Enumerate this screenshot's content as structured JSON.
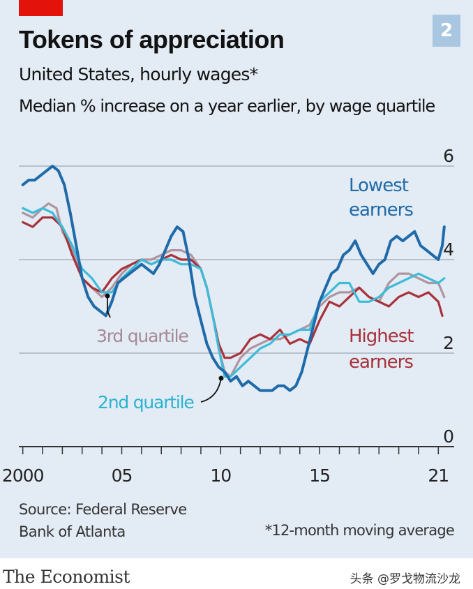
{
  "header": {
    "title": "Tokens of appreciation",
    "subtitle": "United States, hourly wages*",
    "subtitle2": "Median % increase on a year earlier, by wage quartile",
    "chart_number": "2"
  },
  "footer": {
    "source_line1": "Source: Federal Reserve",
    "source_line2": "Bank of Atlanta",
    "footnote": "*12-month moving average",
    "brand": "The Economist",
    "watermark": "头条 @罗戈物流沙龙"
  },
  "colors": {
    "lowest": "#1f6aa8",
    "second": "#3dbcd8",
    "third": "#b0949f",
    "highest": "#a8313a",
    "grid": "#9ba8b4",
    "axis": "#333333"
  },
  "chart_data": {
    "type": "line",
    "title": "Tokens of appreciation",
    "ylim": [
      0,
      6
    ],
    "xlim": [
      1999.8,
      2021.8
    ],
    "yticks": [
      0,
      2,
      4,
      6
    ],
    "xtick_labels": [
      {
        "x": 2000,
        "label": "2000"
      },
      {
        "x": 2005,
        "label": "05"
      },
      {
        "x": 2010,
        "label": "10"
      },
      {
        "x": 2015,
        "label": "15"
      },
      {
        "x": 2021,
        "label": "21"
      }
    ],
    "grid": true,
    "series": [
      {
        "name": "3rd quartile",
        "color_key": "third",
        "x": [
          2000,
          2000.5,
          2001,
          2001.3,
          2001.7,
          2002,
          2002.5,
          2003,
          2003.5,
          2004,
          2004.5,
          2005,
          2005.5,
          2006,
          2006.5,
          2007,
          2007.5,
          2008,
          2008.5,
          2009,
          2009.3,
          2009.6,
          2009.9,
          2010.2,
          2010.5,
          2011,
          2011.5,
          2012,
          2012.5,
          2013,
          2013.5,
          2014,
          2014.5,
          2015,
          2015.5,
          2016,
          2016.5,
          2017,
          2017.5,
          2018,
          2018.5,
          2019,
          2019.5,
          2020,
          2020.5,
          2021,
          2021.3
        ],
        "y": [
          5.0,
          4.9,
          5.1,
          5.2,
          5.1,
          4.6,
          4.2,
          3.6,
          3.4,
          3.2,
          3.4,
          3.7,
          3.9,
          4.0,
          4.0,
          4.1,
          4.2,
          4.2,
          4.1,
          3.8,
          3.4,
          2.8,
          2.1,
          1.6,
          1.5,
          1.9,
          2.1,
          2.2,
          2.3,
          2.3,
          2.4,
          2.5,
          2.6,
          3.0,
          3.2,
          3.3,
          3.3,
          3.4,
          3.2,
          3.1,
          3.5,
          3.7,
          3.7,
          3.6,
          3.5,
          3.5,
          3.2
        ]
      },
      {
        "name": "Highest earners",
        "color_key": "highest",
        "x": [
          2000,
          2000.5,
          2001,
          2001.5,
          2002,
          2002.5,
          2003,
          2003.5,
          2004,
          2004.5,
          2005,
          2005.5,
          2006,
          2006.5,
          2007,
          2007.5,
          2008,
          2008.5,
          2009,
          2009.3,
          2009.6,
          2009.9,
          2010.2,
          2010.5,
          2011,
          2011.5,
          2012,
          2012.5,
          2013,
          2013.5,
          2014,
          2014.5,
          2015,
          2015.5,
          2016,
          2016.5,
          2017,
          2017.5,
          2018,
          2018.5,
          2019,
          2019.5,
          2020,
          2020.5,
          2021,
          2021.2
        ],
        "y": [
          4.8,
          4.7,
          4.9,
          4.9,
          4.7,
          4.1,
          3.6,
          3.4,
          3.3,
          3.6,
          3.8,
          3.9,
          4.0,
          3.9,
          4.0,
          4.1,
          4.0,
          4.0,
          3.8,
          3.4,
          2.8,
          2.2,
          1.9,
          1.9,
          2.0,
          2.3,
          2.4,
          2.3,
          2.5,
          2.2,
          2.3,
          2.2,
          2.7,
          3.1,
          3.0,
          3.2,
          3.4,
          3.2,
          3.1,
          3.0,
          3.2,
          3.3,
          3.2,
          3.3,
          3.1,
          2.8
        ]
      },
      {
        "name": "2nd quartile",
        "color_key": "second",
        "x": [
          2000,
          2000.5,
          2001,
          2001.5,
          2002,
          2002.5,
          2003,
          2003.5,
          2004,
          2004.5,
          2005,
          2005.5,
          2006,
          2006.5,
          2007,
          2007.5,
          2008,
          2008.5,
          2009,
          2009.3,
          2009.6,
          2009.9,
          2010.2,
          2010.5,
          2011,
          2011.5,
          2012,
          2012.5,
          2013,
          2013.5,
          2014,
          2014.5,
          2015,
          2015.5,
          2016,
          2016.5,
          2017,
          2017.5,
          2018,
          2018.5,
          2019,
          2019.5,
          2020,
          2020.5,
          2021,
          2021.3
        ],
        "y": [
          5.1,
          5.0,
          5.1,
          5.0,
          4.7,
          4.3,
          3.8,
          3.6,
          3.3,
          3.3,
          3.6,
          3.8,
          4.0,
          3.9,
          4.0,
          4.0,
          3.9,
          3.9,
          3.8,
          3.4,
          2.8,
          2.1,
          1.5,
          1.5,
          1.7,
          1.9,
          2.1,
          2.2,
          2.4,
          2.4,
          2.5,
          2.5,
          3.1,
          3.3,
          3.5,
          3.5,
          3.1,
          3.1,
          3.2,
          3.4,
          3.5,
          3.6,
          3.7,
          3.6,
          3.5,
          3.6
        ]
      },
      {
        "name": "Lowest earners",
        "color_key": "lowest",
        "x": [
          2000,
          2000.3,
          2000.6,
          2000.9,
          2001.2,
          2001.5,
          2001.8,
          2002.1,
          2002.4,
          2002.7,
          2003,
          2003.3,
          2003.6,
          2003.9,
          2004.2,
          2004.5,
          2004.8,
          2005.1,
          2005.4,
          2005.7,
          2006,
          2006.3,
          2006.6,
          2006.9,
          2007.2,
          2007.5,
          2007.8,
          2008.1,
          2008.4,
          2008.7,
          2009,
          2009.3,
          2009.6,
          2009.9,
          2010.2,
          2010.5,
          2010.8,
          2011.1,
          2011.4,
          2011.7,
          2012,
          2012.3,
          2012.6,
          2012.9,
          2013.2,
          2013.5,
          2013.8,
          2014.1,
          2014.4,
          2014.7,
          2015,
          2015.3,
          2015.6,
          2015.9,
          2016.2,
          2016.5,
          2016.8,
          2017.1,
          2017.4,
          2017.7,
          2018,
          2018.3,
          2018.6,
          2018.9,
          2019.2,
          2019.5,
          2019.8,
          2020.1,
          2020.4,
          2020.7,
          2021,
          2021.2,
          2021.3
        ],
        "y": [
          5.6,
          5.7,
          5.7,
          5.8,
          5.9,
          6.0,
          5.9,
          5.6,
          5.0,
          4.3,
          3.6,
          3.2,
          3.0,
          2.9,
          2.8,
          3.1,
          3.5,
          3.6,
          3.7,
          3.8,
          3.9,
          3.8,
          3.7,
          3.9,
          4.2,
          4.5,
          4.7,
          4.6,
          4.0,
          3.2,
          2.7,
          2.2,
          1.9,
          1.7,
          1.6,
          1.4,
          1.5,
          1.3,
          1.4,
          1.3,
          1.2,
          1.2,
          1.2,
          1.3,
          1.3,
          1.2,
          1.3,
          1.6,
          2.1,
          2.6,
          3.1,
          3.4,
          3.7,
          3.8,
          4.1,
          4.2,
          4.4,
          4.1,
          3.9,
          3.7,
          3.9,
          4.0,
          4.4,
          4.5,
          4.4,
          4.5,
          4.6,
          4.3,
          4.2,
          4.1,
          4.0,
          4.3,
          4.7
        ]
      }
    ]
  },
  "series_labels": {
    "lowest_l1": "Lowest",
    "lowest_l2": "earners",
    "highest_l1": "Highest",
    "highest_l2": "earners",
    "third": "3rd quartile",
    "second": "2nd quartile"
  }
}
